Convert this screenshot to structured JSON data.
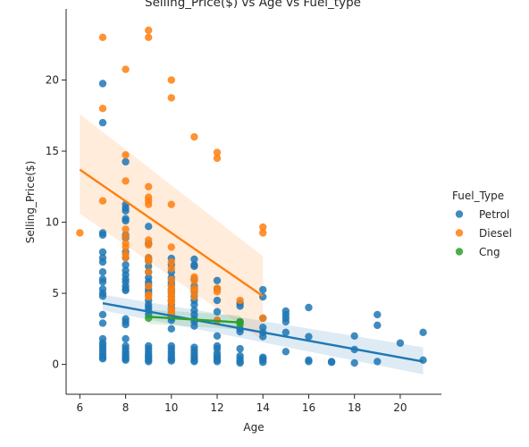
{
  "chart_data": {
    "type": "scatter",
    "title": "Selling_Price($) vs Age vs Fuel_type",
    "xlabel": "Age",
    "ylabel": "Selling_Price($)",
    "xlim": [
      5.4,
      21.8
    ],
    "ylim": [
      -2.1,
      25.0
    ],
    "xticks": [
      6,
      8,
      10,
      12,
      14,
      16,
      18,
      20
    ],
    "yticks": [
      0,
      5,
      10,
      15,
      20
    ],
    "grid": false,
    "legend": {
      "title": "Fuel_Type",
      "placement": "right"
    },
    "series": [
      {
        "name": "Petrol",
        "color": "#1f77b4",
        "regression": {
          "x": [
            7,
            21
          ],
          "y": [
            4.3,
            0.2
          ],
          "band_upper": [
            4.9,
            1.2
          ],
          "band_lower": [
            3.8,
            -0.7
          ]
        },
        "points": [
          [
            7,
            19.75
          ],
          [
            7,
            17.0
          ],
          [
            7,
            9.25
          ],
          [
            7,
            9.1
          ],
          [
            7,
            7.9
          ],
          [
            7,
            7.5
          ],
          [
            7,
            7.2
          ],
          [
            7,
            6.5
          ],
          [
            7,
            6.0
          ],
          [
            7,
            5.8
          ],
          [
            7,
            5.3
          ],
          [
            7,
            5.0
          ],
          [
            7,
            4.8
          ],
          [
            7,
            3.5
          ],
          [
            7,
            2.9
          ],
          [
            7,
            1.8
          ],
          [
            7,
            1.5
          ],
          [
            7,
            1.3
          ],
          [
            7,
            1.1
          ],
          [
            7,
            0.9
          ],
          [
            7,
            0.7
          ],
          [
            7,
            0.5
          ],
          [
            7,
            0.4
          ],
          [
            8,
            14.25
          ],
          [
            8,
            11.25
          ],
          [
            8,
            11.0
          ],
          [
            8,
            10.8
          ],
          [
            8,
            10.25
          ],
          [
            8,
            10.1
          ],
          [
            8,
            9.1
          ],
          [
            8,
            8.9
          ],
          [
            8,
            7.9
          ],
          [
            8,
            7.5
          ],
          [
            8,
            7.0
          ],
          [
            8,
            6.6
          ],
          [
            8,
            6.3
          ],
          [
            8,
            6.0
          ],
          [
            8,
            5.8
          ],
          [
            8,
            5.5
          ],
          [
            8,
            5.3
          ],
          [
            8,
            5.2
          ],
          [
            8,
            3.2
          ],
          [
            8,
            3.0
          ],
          [
            8,
            2.8
          ],
          [
            8,
            1.8
          ],
          [
            8,
            1.3
          ],
          [
            8,
            1.1
          ],
          [
            8,
            0.9
          ],
          [
            8,
            0.75
          ],
          [
            8,
            0.6
          ],
          [
            8,
            0.5
          ],
          [
            8,
            0.4
          ],
          [
            8,
            0.3
          ],
          [
            9,
            9.7
          ],
          [
            9,
            8.5
          ],
          [
            9,
            7.5
          ],
          [
            9,
            7.3
          ],
          [
            9,
            6.9
          ],
          [
            9,
            6.5
          ],
          [
            9,
            6.1
          ],
          [
            9,
            5.8
          ],
          [
            9,
            5.6
          ],
          [
            9,
            5.3
          ],
          [
            9,
            5.1
          ],
          [
            9,
            4.9
          ],
          [
            9,
            4.5
          ],
          [
            9,
            4.2
          ],
          [
            9,
            4.0
          ],
          [
            9,
            3.8
          ],
          [
            9,
            3.5
          ],
          [
            9,
            1.3
          ],
          [
            9,
            1.1
          ],
          [
            9,
            0.9
          ],
          [
            9,
            0.7
          ],
          [
            9,
            0.55
          ],
          [
            9,
            0.45
          ],
          [
            9,
            0.3
          ],
          [
            9,
            0.2
          ],
          [
            10,
            7.45
          ],
          [
            10,
            7.0
          ],
          [
            10,
            6.5
          ],
          [
            10,
            6.1
          ],
          [
            10,
            5.8
          ],
          [
            10,
            5.6
          ],
          [
            10,
            5.3
          ],
          [
            10,
            5.1
          ],
          [
            10,
            4.8
          ],
          [
            10,
            4.5
          ],
          [
            10,
            4.2
          ],
          [
            10,
            3.9
          ],
          [
            10,
            3.6
          ],
          [
            10,
            3.3
          ],
          [
            10,
            3.1
          ],
          [
            10,
            2.5
          ],
          [
            10,
            1.3
          ],
          [
            10,
            1.1
          ],
          [
            10,
            0.9
          ],
          [
            10,
            0.7
          ],
          [
            10,
            0.5
          ],
          [
            10,
            0.35
          ],
          [
            10,
            0.25
          ],
          [
            11,
            7.4
          ],
          [
            11,
            7.0
          ],
          [
            11,
            6.9
          ],
          [
            11,
            6.0
          ],
          [
            11,
            5.5
          ],
          [
            11,
            5.3
          ],
          [
            11,
            5.1
          ],
          [
            11,
            4.8
          ],
          [
            11,
            4.5
          ],
          [
            11,
            4.2
          ],
          [
            11,
            3.8
          ],
          [
            11,
            3.5
          ],
          [
            11,
            3.2
          ],
          [
            11,
            3.0
          ],
          [
            11,
            2.7
          ],
          [
            11,
            1.2
          ],
          [
            11,
            1.0
          ],
          [
            11,
            0.8
          ],
          [
            11,
            0.6
          ],
          [
            11,
            0.45
          ],
          [
            11,
            0.3
          ],
          [
            11,
            0.2
          ],
          [
            12,
            5.9
          ],
          [
            12,
            5.3
          ],
          [
            12,
            4.5
          ],
          [
            12,
            3.7
          ],
          [
            12,
            3.1
          ],
          [
            12,
            2.0
          ],
          [
            12,
            1.3
          ],
          [
            12,
            1.1
          ],
          [
            12,
            0.8
          ],
          [
            12,
            0.6
          ],
          [
            12,
            0.45
          ],
          [
            12,
            0.3
          ],
          [
            12,
            0.2
          ],
          [
            13,
            4.3
          ],
          [
            13,
            4.1
          ],
          [
            13,
            3.0
          ],
          [
            13,
            2.5
          ],
          [
            13,
            2.3
          ],
          [
            13,
            1.1
          ],
          [
            13,
            0.6
          ],
          [
            13,
            0.4
          ],
          [
            13,
            0.2
          ],
          [
            13,
            0.1
          ],
          [
            14,
            5.25
          ],
          [
            14,
            4.75
          ],
          [
            14,
            3.25
          ],
          [
            14,
            2.6
          ],
          [
            14,
            2.25
          ],
          [
            14,
            1.95
          ],
          [
            14,
            0.5
          ],
          [
            14,
            0.4
          ],
          [
            14,
            0.3
          ],
          [
            14,
            0.15
          ],
          [
            15,
            3.75
          ],
          [
            15,
            3.5
          ],
          [
            15,
            3.25
          ],
          [
            15,
            3.0
          ],
          [
            15,
            2.25
          ],
          [
            15,
            0.9
          ],
          [
            16,
            4.0
          ],
          [
            16,
            1.95
          ],
          [
            16,
            0.3
          ],
          [
            16,
            0.2
          ],
          [
            17,
            0.2
          ],
          [
            17,
            0.15
          ],
          [
            18,
            2.0
          ],
          [
            18,
            1.05
          ],
          [
            18,
            0.1
          ],
          [
            19,
            3.5
          ],
          [
            19,
            2.75
          ],
          [
            19,
            0.2
          ],
          [
            20,
            1.5
          ],
          [
            21,
            2.25
          ],
          [
            21,
            0.3
          ]
        ]
      },
      {
        "name": "Diesel",
        "color": "#ff7f0e",
        "regression": {
          "x": [
            6,
            14
          ],
          "y": [
            13.7,
            4.8
          ],
          "band_upper": [
            17.6,
            7.6
          ],
          "band_lower": [
            10.6,
            1.7
          ]
        },
        "points": [
          [
            6,
            9.25
          ],
          [
            7,
            23.0
          ],
          [
            7,
            18.0
          ],
          [
            7,
            11.5
          ],
          [
            8,
            20.75
          ],
          [
            8,
            14.73
          ],
          [
            8,
            12.9
          ],
          [
            8,
            9.5
          ],
          [
            8,
            9.0
          ],
          [
            8,
            8.5
          ],
          [
            8,
            8.25
          ],
          [
            8,
            7.75
          ],
          [
            8,
            7.5
          ],
          [
            9,
            23.5
          ],
          [
            9,
            23.0
          ],
          [
            9,
            12.5
          ],
          [
            9,
            11.75
          ],
          [
            9,
            11.5
          ],
          [
            9,
            11.25
          ],
          [
            9,
            8.75
          ],
          [
            9,
            8.4
          ],
          [
            9,
            7.5
          ],
          [
            9,
            7.25
          ],
          [
            9,
            6.5
          ],
          [
            9,
            5.5
          ],
          [
            9,
            4.9
          ],
          [
            9,
            4.75
          ],
          [
            10,
            20.0
          ],
          [
            10,
            18.75
          ],
          [
            10,
            11.25
          ],
          [
            10,
            8.25
          ],
          [
            10,
            7.2
          ],
          [
            10,
            6.75
          ],
          [
            10,
            5.95
          ],
          [
            10,
            5.5
          ],
          [
            10,
            5.25
          ],
          [
            10,
            5.0
          ],
          [
            10,
            4.75
          ],
          [
            10,
            4.5
          ],
          [
            10,
            4.4
          ],
          [
            10,
            4.0
          ],
          [
            10,
            3.75
          ],
          [
            10,
            3.5
          ],
          [
            11,
            16.0
          ],
          [
            11,
            6.15
          ],
          [
            11,
            5.9
          ],
          [
            11,
            5.35
          ],
          [
            11,
            5.15
          ],
          [
            11,
            4.75
          ],
          [
            12,
            14.9
          ],
          [
            12,
            14.5
          ],
          [
            12,
            5.35
          ],
          [
            12,
            5.11
          ],
          [
            12,
            3.1
          ],
          [
            13,
            4.5
          ],
          [
            14,
            9.65
          ],
          [
            14,
            9.25
          ],
          [
            14,
            3.25
          ]
        ]
      },
      {
        "name": "Cng",
        "color": "#2ca02c",
        "regression": {
          "x": [
            9,
            13
          ],
          "y": [
            3.35,
            2.95
          ],
          "band_upper": [
            3.85,
            3.45
          ],
          "band_lower": [
            2.85,
            2.45
          ]
        },
        "points": [
          [
            9,
            3.25
          ],
          [
            13,
            3.0
          ],
          [
            13,
            2.8
          ]
        ]
      }
    ]
  }
}
